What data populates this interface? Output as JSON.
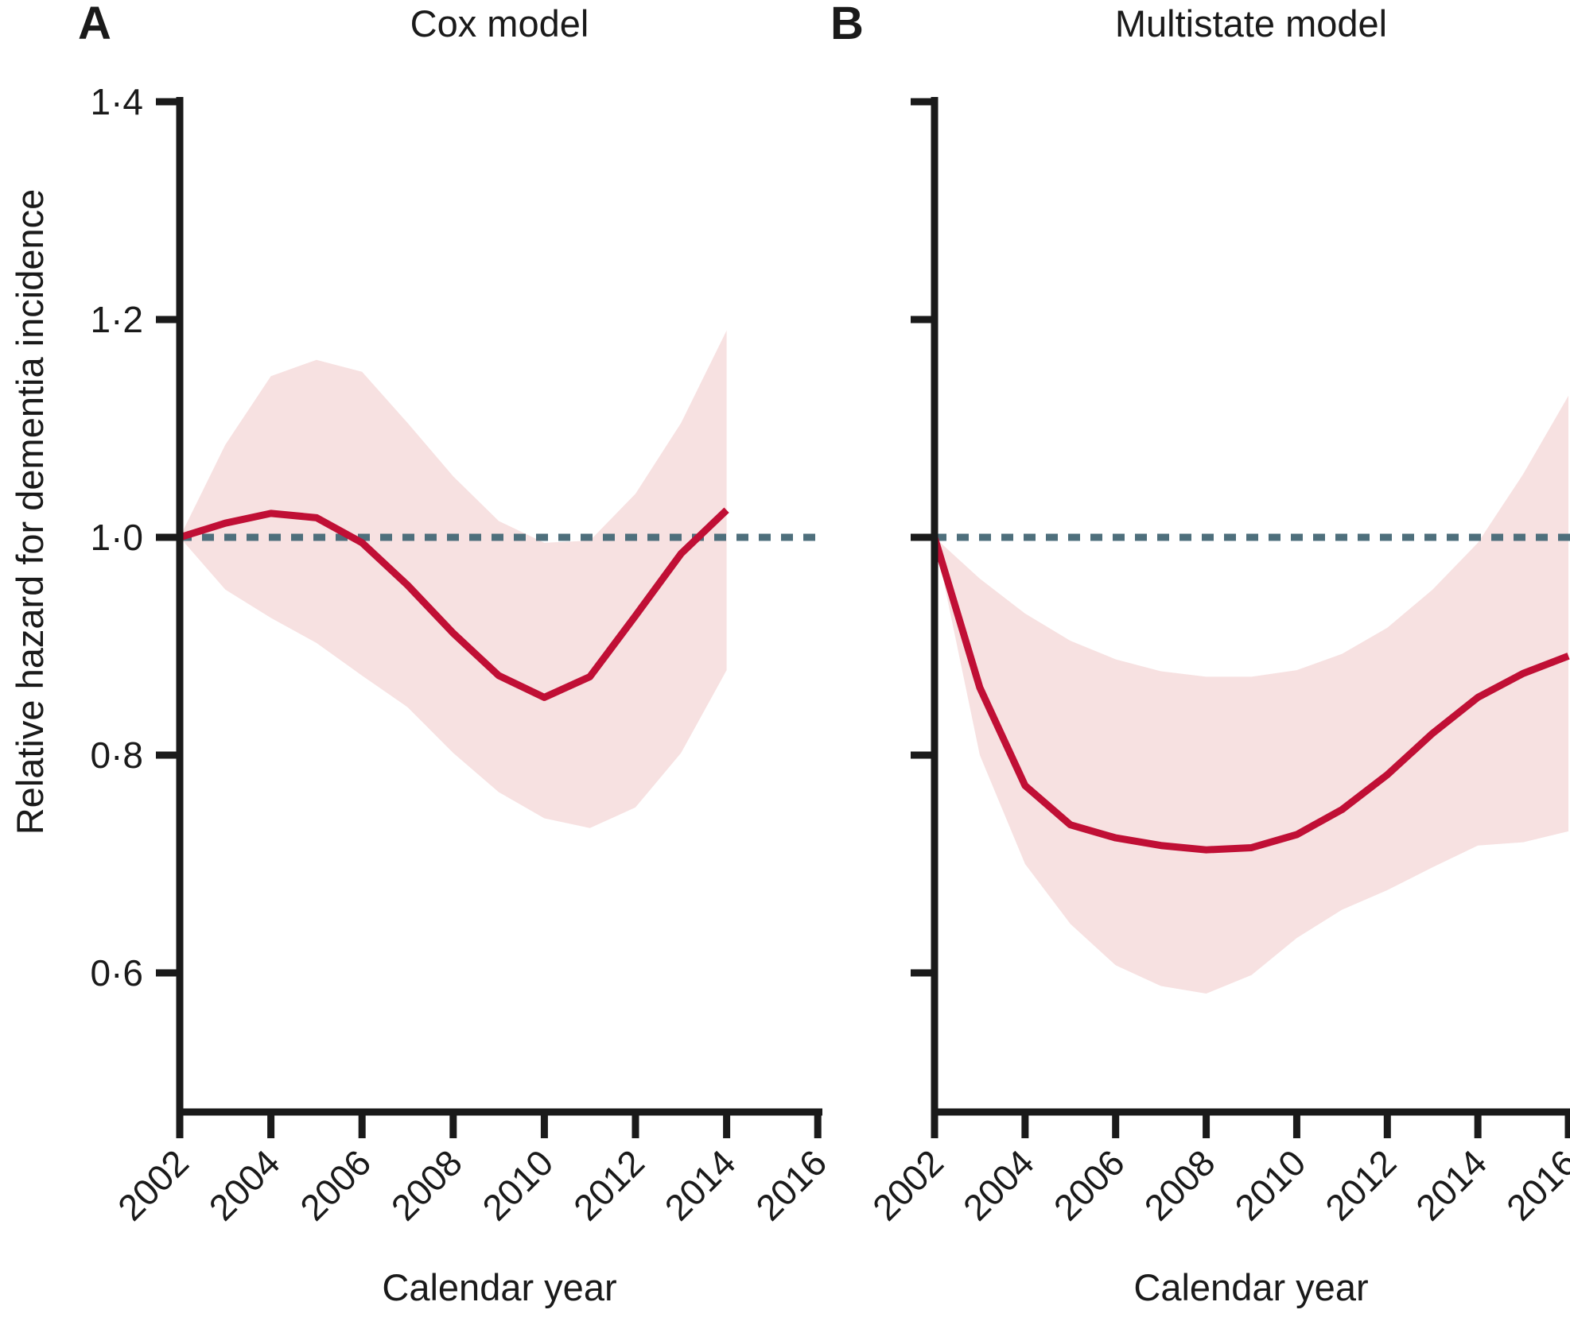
{
  "figure": {
    "y_axis_label": "Relative hazard for dementia incidence",
    "x_axis_label": "Calendar year",
    "panels": [
      {
        "letter": "A",
        "title": "Cox model"
      },
      {
        "letter": "B",
        "title": "Multistate model"
      }
    ],
    "style": {
      "line_color": "#c00f35",
      "band_color": "#f7e1e1",
      "reference_line_color": "#4e6f7c",
      "axis_color": "#1a1a1a"
    }
  },
  "chart_data": [
    {
      "type": "line",
      "panel": "A",
      "title": "Cox model",
      "xlabel": "Calendar year",
      "ylabel": "Relative hazard for dementia incidence",
      "reference_value": 1.0,
      "ylim": [
        0.47,
        1.4
      ],
      "xlim": [
        2002,
        2016
      ],
      "grid": false,
      "legend": "none",
      "yticks": {
        "values": [
          1.4,
          1.2,
          1.0,
          0.8,
          0.6
        ],
        "labels": [
          "1·4",
          "1·2",
          "1·0",
          "0·8",
          "0·6"
        ],
        "show_labels": true
      },
      "xticks": {
        "values": [
          2002,
          2004,
          2006,
          2008,
          2010,
          2012,
          2014,
          2016
        ],
        "labels": [
          "2002",
          "2004",
          "2006",
          "2008",
          "2010",
          "2012",
          "2014",
          "2016"
        ]
      },
      "x": [
        2002,
        2003,
        2004,
        2005,
        2006,
        2007,
        2008,
        2009,
        2010,
        2011,
        2012,
        2013,
        2014
      ],
      "series": [
        {
          "name": "relative hazard (point estimate)",
          "values": [
            1.0,
            1.013,
            1.022,
            1.018,
            0.995,
            0.956,
            0.912,
            0.873,
            0.853,
            0.872,
            0.928,
            0.985,
            1.025
          ]
        },
        {
          "name": "95% CI upper",
          "values": [
            1.0,
            1.085,
            1.148,
            1.163,
            1.152,
            1.105,
            1.056,
            1.015,
            0.995,
            0.997,
            1.04,
            1.105,
            1.19
          ]
        },
        {
          "name": "95% CI lower",
          "values": [
            1.0,
            0.952,
            0.926,
            0.903,
            0.873,
            0.844,
            0.802,
            0.766,
            0.742,
            0.733,
            0.752,
            0.802,
            0.878
          ]
        }
      ]
    },
    {
      "type": "line",
      "panel": "B",
      "title": "Multistate model",
      "xlabel": "Calendar year",
      "ylabel": "Relative hazard for dementia incidence",
      "reference_value": 1.0,
      "ylim": [
        0.47,
        1.4
      ],
      "xlim": [
        2002,
        2016
      ],
      "grid": false,
      "legend": "none",
      "yticks": {
        "values": [
          1.4,
          1.2,
          1.0,
          0.8,
          0.6
        ],
        "labels": [
          "1·4",
          "1·2",
          "1·0",
          "0·8",
          "0·6"
        ],
        "show_labels": false
      },
      "xticks": {
        "values": [
          2002,
          2004,
          2006,
          2008,
          2010,
          2012,
          2014,
          2016
        ],
        "labels": [
          "2002",
          "2004",
          "2006",
          "2008",
          "2010",
          "2012",
          "2014",
          "2016"
        ]
      },
      "x": [
        2002,
        2003,
        2004,
        2005,
        2006,
        2007,
        2008,
        2009,
        2010,
        2011,
        2012,
        2013,
        2014,
        2015,
        2016
      ],
      "series": [
        {
          "name": "relative hazard (point estimate)",
          "values": [
            1.0,
            0.862,
            0.772,
            0.736,
            0.724,
            0.717,
            0.713,
            0.715,
            0.727,
            0.75,
            0.782,
            0.82,
            0.853,
            0.875,
            0.891
          ]
        },
        {
          "name": "95% CI upper",
          "values": [
            1.0,
            0.962,
            0.93,
            0.905,
            0.888,
            0.877,
            0.872,
            0.872,
            0.878,
            0.893,
            0.917,
            0.952,
            0.995,
            1.058,
            1.13
          ]
        },
        {
          "name": "95% CI lower",
          "values": [
            1.0,
            0.8,
            0.7,
            0.645,
            0.607,
            0.588,
            0.581,
            0.598,
            0.632,
            0.658,
            0.676,
            0.697,
            0.717,
            0.72,
            0.73
          ]
        }
      ]
    }
  ]
}
